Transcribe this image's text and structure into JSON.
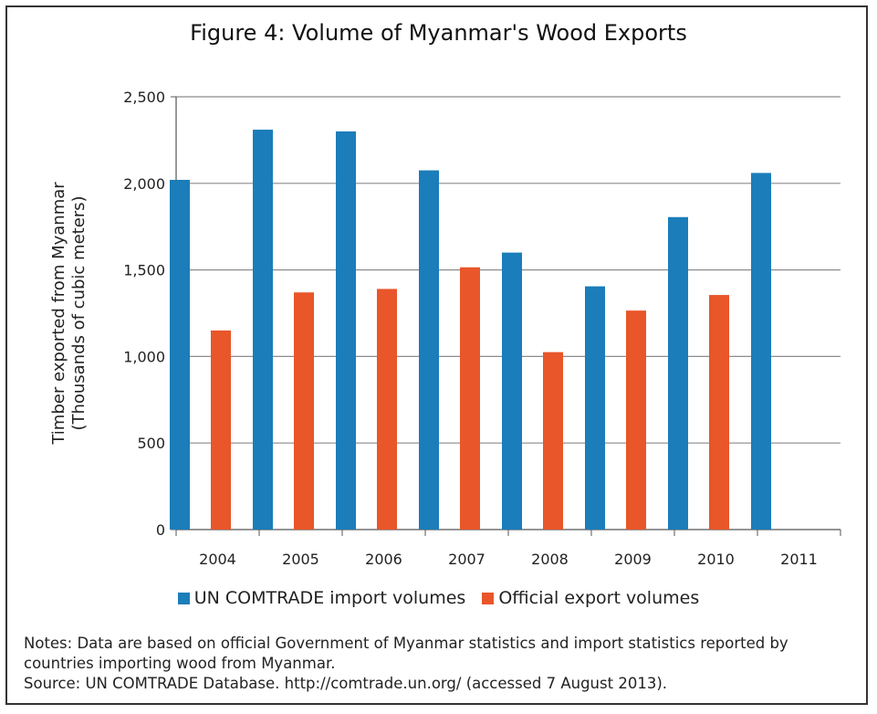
{
  "chart_data": {
    "type": "bar",
    "title": "Figure 4: Volume of Myanmar's Wood Exports",
    "ylabel_line1": "Timber exported from Myanmar",
    "ylabel_line2": "(Thousands of cubic meters)",
    "xlabel": "",
    "categories": [
      "2004",
      "2005",
      "2006",
      "2007",
      "2008",
      "2009",
      "2010",
      "2011"
    ],
    "ylim": [
      0,
      2500
    ],
    "yticks": [
      0,
      500,
      1000,
      1500,
      2000,
      2500
    ],
    "ytick_labels": [
      "0",
      "500",
      "1,000",
      "1,500",
      "2,000",
      "2,500"
    ],
    "grid": true,
    "legend_position": "bottom",
    "series": [
      {
        "name": "UN COMTRADE import volumes",
        "color": "#1b7db9",
        "values": [
          2020,
          2310,
          2300,
          2075,
          1600,
          1405,
          1805,
          2060
        ]
      },
      {
        "name": "Official export volumes",
        "color": "#e8562a",
        "values": [
          1150,
          1370,
          1390,
          1515,
          1025,
          1265,
          1355,
          null
        ]
      }
    ]
  },
  "notes": {
    "line1": "Notes: Data are based on official Government of Myanmar statistics and import statistics reported by",
    "line2": "countries importing wood from Myanmar.",
    "line3": "Source: UN COMTRADE Database. http://comtrade.un.org/ (accessed 7 August 2013)."
  }
}
